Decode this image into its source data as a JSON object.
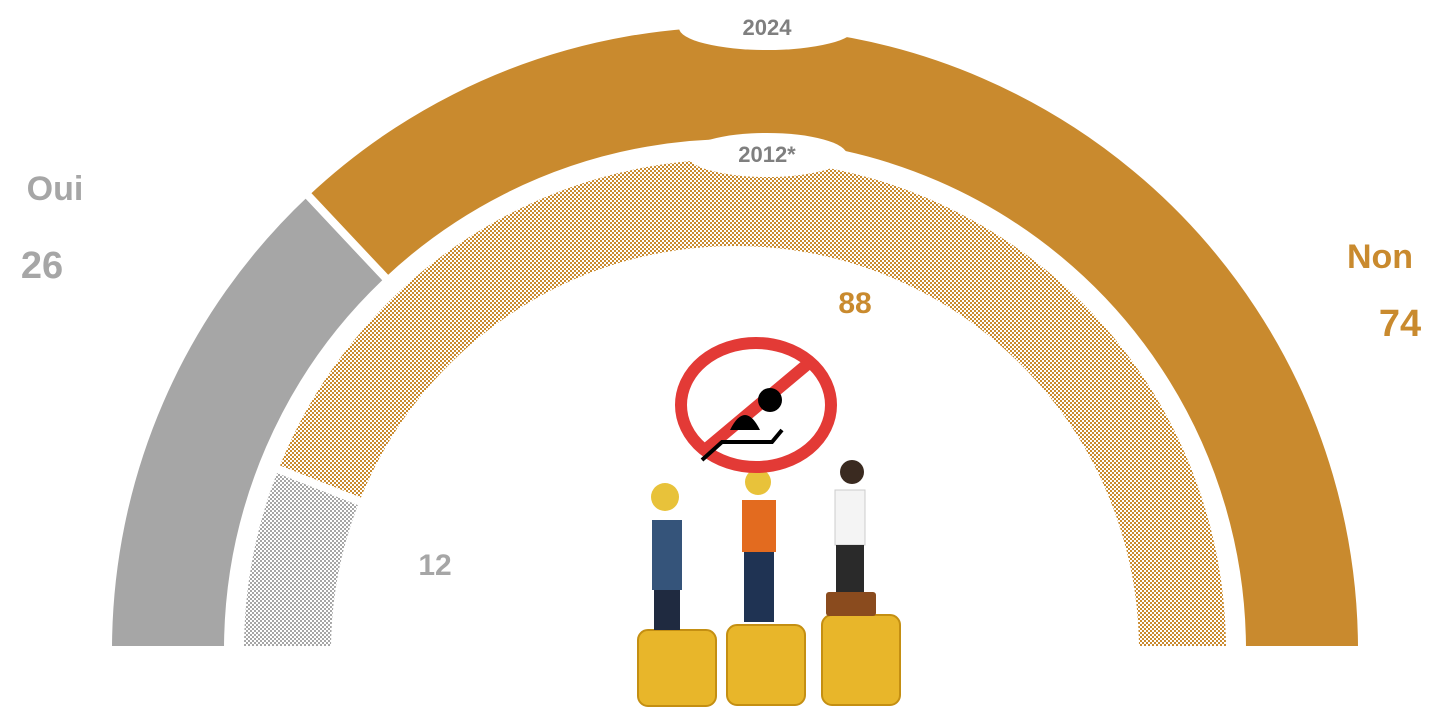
{
  "chart_data": {
    "type": "half-donut",
    "categories": [
      "Oui",
      "Non"
    ],
    "colors": [
      "#a6a6a6",
      "#c98a2e"
    ],
    "rings": [
      {
        "name": "2024",
        "values": [
          26,
          74
        ],
        "pattern": false
      },
      {
        "name": "2012*",
        "values": [
          12,
          88
        ],
        "pattern": true
      }
    ]
  }
}
